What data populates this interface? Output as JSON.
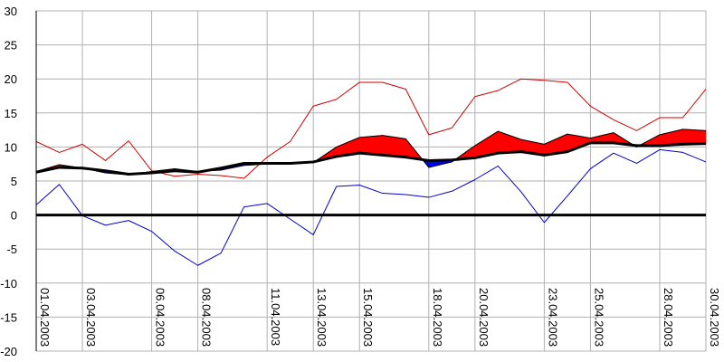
{
  "chart_data": {
    "type": "line",
    "title": "",
    "xlabel": "",
    "ylabel": "",
    "ylim": [
      -20,
      30
    ],
    "yticks": [
      -20,
      -15,
      -10,
      -5,
      0,
      5,
      10,
      15,
      20,
      25,
      30
    ],
    "grid": true,
    "legend": "none",
    "x_tick_labels": [
      {
        "label": "01.04.2003",
        "day": 1
      },
      {
        "label": "03.04.2003",
        "day": 3
      },
      {
        "label": "06.04.2003",
        "day": 6
      },
      {
        "label": "08.04.2003",
        "day": 8
      },
      {
        "label": "11.04.2003",
        "day": 11
      },
      {
        "label": "13.04.2003",
        "day": 13
      },
      {
        "label": "15.04.2003",
        "day": 15
      },
      {
        "label": "18.04.2003",
        "day": 18
      },
      {
        "label": "20.04.2003",
        "day": 20
      },
      {
        "label": "23.04.2003",
        "day": 23
      },
      {
        "label": "25.04.2003",
        "day": 25
      },
      {
        "label": "28.04.2003",
        "day": 28
      },
      {
        "label": "30.04.2003",
        "day": 30
      }
    ],
    "x": [
      1,
      2,
      3,
      4,
      5,
      6,
      7,
      8,
      9,
      10,
      11,
      12,
      13,
      14,
      15,
      16,
      17,
      18,
      19,
      20,
      21,
      22,
      23,
      24,
      25,
      26,
      27,
      28,
      29,
      30
    ],
    "series": [
      {
        "role": "max",
        "color": "#cc0000",
        "values": [
          10.8,
          9.2,
          10.4,
          8.0,
          10.9,
          6.5,
          5.7,
          6.0,
          5.8,
          5.4,
          8.5,
          10.8,
          16.0,
          17.0,
          19.5,
          19.5,
          18.5,
          11.8,
          12.8,
          17.4,
          18.3,
          20.0,
          19.8,
          19.5,
          16.0,
          14.0,
          12.4,
          14.3,
          14.3,
          18.5
        ]
      },
      {
        "role": "mean",
        "color": "#cc0000",
        "values": [
          6.4,
          7.4,
          6.9,
          6.2,
          5.9,
          6.4,
          6.8,
          6.4,
          6.6,
          7.3,
          7.5,
          7.5,
          7.7,
          10.0,
          11.4,
          11.7,
          11.2,
          7.0,
          7.8,
          10.2,
          12.3,
          11.1,
          10.4,
          11.9,
          11.3,
          12.1,
          10.0,
          11.8,
          12.6,
          12.4
        ]
      },
      {
        "role": "normal",
        "color": "#000000",
        "values": [
          6.3,
          7.0,
          6.9,
          6.5,
          6.0,
          6.2,
          6.5,
          6.3,
          6.9,
          7.6,
          7.6,
          7.6,
          7.8,
          8.6,
          9.1,
          8.8,
          8.5,
          8.0,
          8.1,
          8.4,
          9.1,
          9.3,
          8.8,
          9.3,
          10.6,
          10.6,
          10.2,
          10.2,
          10.4,
          10.5
        ]
      },
      {
        "role": "min",
        "color": "#0000cc",
        "values": [
          1.5,
          4.5,
          -0.1,
          -1.5,
          -0.8,
          -2.4,
          -5.3,
          -7.4,
          -5.6,
          1.2,
          1.7,
          -0.6,
          -2.9,
          4.2,
          4.4,
          3.2,
          3.0,
          2.6,
          3.5,
          5.2,
          7.2,
          3.4,
          -1.1,
          2.8,
          6.8,
          9.1,
          7.6,
          9.6,
          9.2,
          7.8
        ]
      }
    ]
  }
}
